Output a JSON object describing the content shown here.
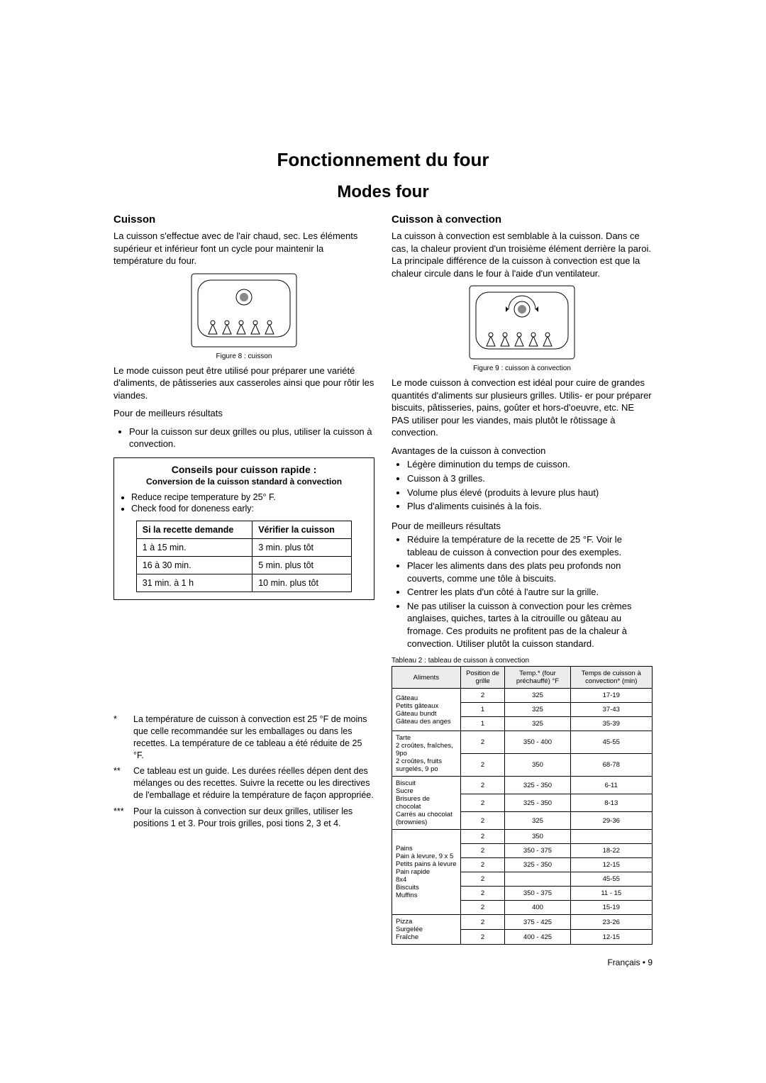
{
  "title": "Fonctionnement du four",
  "subtitle": "Modes four",
  "left": {
    "heading": "Cuisson",
    "intro": "La cuisson s'effectue avec de l'air chaud, sec. Les éléments supérieur et inférieur font un cycle pour maintenir la température du four.",
    "fig_caption": "Figure 8 : cuisson",
    "para2": "Le mode cuisson peut être utilisé pour préparer une variété d'aliments, de pâtisseries aux casseroles ainsi que pour rôtir les viandes.",
    "best_label": "Pour de meilleurs résultats",
    "best_bullets": [
      "Pour la cuisson sur deux grilles ou plus, utiliser la cuisson à convection."
    ],
    "tips": {
      "title": "Conseils pour cuisson rapide :",
      "subtitle": "Conversion de la cuisson standard à convection",
      "items": [
        "Reduce recipe temperature by 25° F.",
        "Check food for doneness early:"
      ],
      "table_head": [
        "Si la recette demande",
        "Vérifier la cuisson"
      ],
      "table_rows": [
        [
          "1 à 15 min.",
          "3 min. plus tôt"
        ],
        [
          "16 à 30 min.",
          "5 min. plus tôt"
        ],
        [
          "31 min. à 1 h",
          "10 min. plus tôt"
        ]
      ]
    },
    "footnotes": [
      {
        "mark": "*",
        "text": "La température de cuisson à convection est 25 °F de   moins que celle recommandée sur les emballages ou dans les recettes. La température de ce tableau a été réduite de 25 °F."
      },
      {
        "mark": "**",
        "text": "Ce tableau est un guide. Les durées réelles dépen dent des mélanges ou des recettes. Suivre la recette ou les directives de l'emballage et réduire la température de façon appropriée."
      },
      {
        "mark": "***",
        "text": "Pour la cuisson à convection sur deux grilles, utiliser les positions 1 et 3. Pour trois grilles, posi tions 2, 3 et 4."
      }
    ]
  },
  "right": {
    "heading": "Cuisson à convection",
    "intro": "La cuisson à convection est semblable à la cuisson. Dans ce cas, la chaleur provient d'un troisième élément derrière la paroi. La principale différence de la cuisson à convection est que la chaleur circule dans le four à l'aide d'un ventilateur.",
    "fig_caption": "Figure 9 : cuisson à convection",
    "para2": "Le mode cuisson à convection est idéal pour cuire de grandes quantités d'aliments sur plusieurs grilles. Utilis- er pour préparer biscuits, pâtisseries, pains, goûter et hors-d'oeuvre, etc. NE PAS utiliser pour les viandes, mais plutôt le rôtissage à convection.",
    "adv_label": "Avantages de la cuisson à convection",
    "adv_bullets": [
      "Légère diminution du temps de cuisson.",
      "Cuisson à 3 grilles.",
      "Volume plus élevé (produits à levure plus haut)",
      "Plus d'aliments cuisinés à la fois."
    ],
    "best_label": "Pour de meilleurs résultats",
    "best_bullets": [
      "Réduire la température de la recette de 25 °F. Voir le tableau de cuisson à convection pour des exemples.",
      "Placer les aliments dans des plats peu profonds non couverts, comme une tôle à biscuits.",
      "Centrer les plats d'un côté à l'autre sur la grille.",
      "Ne pas utiliser la cuisson à convection pour les crèmes anglaises, quiches, tartes à la citrouille ou gâteau au fromage. Ces produits ne profitent pas de la chaleur à convection. Utiliser plutôt la cuisson standard."
    ],
    "cook_caption": "Tableau 2 : tableau de cuisson à convection",
    "cook_head": [
      "Aliments",
      "Position de grille",
      "Temp.* (four préchauffé) °F",
      "Temps de cuisson à convection* (min)"
    ],
    "cook_rows": [
      {
        "group": "Gâteau",
        "items": [
          {
            "name": "Petits gâteaux",
            "pos": "2",
            "temp": "325",
            "time": "17-19"
          },
          {
            "name": "Gâteau bundt",
            "pos": "1",
            "temp": "325",
            "time": "37-43"
          },
          {
            "name": "Gâteau des anges",
            "pos": "1",
            "temp": "325",
            "time": "35-39"
          }
        ]
      },
      {
        "group": "Tarte",
        "items": [
          {
            "name": "2 croûtes, fraîches, 9po",
            "pos": "2",
            "temp": "350 - 400",
            "time": "45-55"
          },
          {
            "name": "2 croûtes, fruits surgelés, 9 po",
            "pos": "2",
            "temp": "350",
            "time": "68-78"
          }
        ]
      },
      {
        "group": "Biscuit",
        "items": [
          {
            "name": "Sucre",
            "pos": "2",
            "temp": "325 - 350",
            "time": "6-11"
          },
          {
            "name": "Brisures de chocolat",
            "pos": "2",
            "temp": "325 - 350",
            "time": "8-13"
          },
          {
            "name": "Carrés au chocolat (brownies)",
            "pos": "2",
            "temp": "325",
            "time": "29-36"
          }
        ]
      },
      {
        "group": "Pains",
        "items": [
          {
            "name": "Pain à levure, 9 x 5",
            "pos": "2",
            "temp": "350",
            "time": ""
          },
          {
            "name": "Petits pains à levure",
            "pos": "2",
            "temp": "350 - 375",
            "time": "18-22"
          },
          {
            "name": "Pain rapide",
            "pos": "2",
            "temp": "325 - 350",
            "time": "12-15"
          },
          {
            "name": "8x4",
            "pos": "2",
            "temp": "",
            "time": "45-55"
          },
          {
            "name": "Biscuits",
            "pos": "2",
            "temp": "350 - 375",
            "time": "11 - 15"
          },
          {
            "name": "Muffins",
            "pos": "2",
            "temp": "400",
            "time": "15-19"
          }
        ]
      },
      {
        "group": "Pizza",
        "items": [
          {
            "name": "Surgelée",
            "pos": "2",
            "temp": "375 - 425",
            "time": "23-26"
          },
          {
            "name": "Fraîche",
            "pos": "2",
            "temp": "400 - 425",
            "time": "12-15"
          }
        ]
      }
    ]
  },
  "page_footer": "Français • 9"
}
